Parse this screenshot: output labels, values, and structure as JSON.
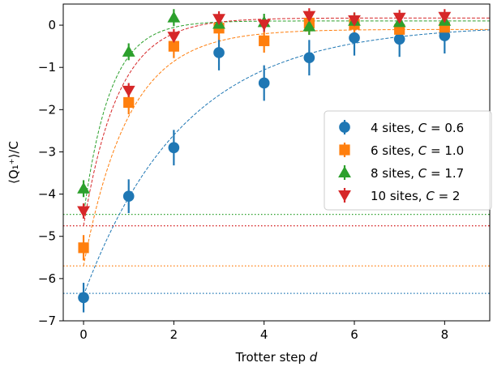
{
  "chart_data": {
    "type": "scatter",
    "xlabel": "Trotter step d",
    "ylabel": "⟨Q₁⁺⟩/C",
    "xlim": [
      -0.45,
      9.0
    ],
    "ylim": [
      -7,
      0.5
    ],
    "xticks": [
      0,
      2,
      4,
      6,
      8
    ],
    "yticks": [
      0,
      -1,
      -2,
      -3,
      -4,
      -5,
      -6,
      -7
    ],
    "legend_position": "center-right",
    "series": [
      {
        "name": "4 sites, C = 0.6",
        "color": "#1f77b4",
        "marker": "circle",
        "x": [
          0,
          1,
          2,
          3,
          4,
          5,
          6,
          7,
          8
        ],
        "y": [
          -6.45,
          -4.05,
          -2.9,
          -0.65,
          -1.37,
          -0.77,
          -0.3,
          -0.33,
          -0.25
        ],
        "yerr": [
          0.35,
          0.4,
          0.42,
          0.42,
          0.42,
          0.42,
          0.42,
          0.42,
          0.42
        ],
        "fit_start": -6.4,
        "fit_end": 0.0,
        "fit_rate": 0.45,
        "hline": -6.35
      },
      {
        "name": "6 sites, C = 1.0",
        "color": "#ff7f0e",
        "marker": "square",
        "x": [
          0,
          1,
          2,
          3,
          4,
          5,
          6,
          7,
          8
        ],
        "y": [
          -5.27,
          -1.83,
          -0.5,
          -0.07,
          -0.37,
          0.05,
          0.02,
          -0.1,
          -0.05
        ],
        "yerr": [
          0.3,
          0.28,
          0.28,
          0.28,
          0.28,
          0.28,
          0.28,
          0.28,
          0.28
        ],
        "fit_start": -5.7,
        "fit_end": -0.1,
        "fit_rate": 1.0,
        "hline": -5.7
      },
      {
        "name": "8 sites, C = 1.7",
        "color": "#2ca02c",
        "marker": "triangle-up",
        "x": [
          0,
          1,
          2,
          3,
          4,
          5,
          6,
          7,
          8
        ],
        "y": [
          -3.87,
          -0.63,
          0.18,
          0.03,
          0.07,
          -0.03,
          0.1,
          0.07,
          0.1
        ],
        "yerr": [
          0.2,
          0.2,
          0.2,
          0.2,
          0.2,
          0.2,
          0.2,
          0.2,
          0.2
        ],
        "fit_start": -4.5,
        "fit_end": 0.1,
        "fit_rate": 1.7,
        "hline": -4.48
      },
      {
        "name": "10 sites, C = 2",
        "color": "#d62728",
        "marker": "triangle-down",
        "x": [
          0,
          1,
          2,
          3,
          4,
          5,
          6,
          7,
          8
        ],
        "y": [
          -4.4,
          -1.55,
          -0.27,
          0.15,
          0.02,
          0.22,
          0.12,
          0.18,
          0.2
        ],
        "yerr": [
          0.18,
          0.18,
          0.18,
          0.18,
          0.18,
          0.18,
          0.18,
          0.18,
          0.18
        ],
        "fit_start": -4.75,
        "fit_end": 0.17,
        "fit_rate": 1.3,
        "hline": -4.75
      }
    ]
  }
}
